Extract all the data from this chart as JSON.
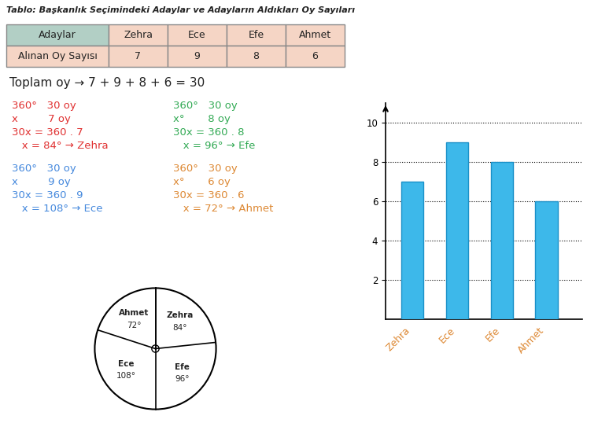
{
  "title": "Tablo: Başkanlık Seçimindeki Adaylar ve Adayların Aldıkları Oy Sayıları",
  "candidates": [
    "Zehra",
    "Ece",
    "Efe",
    "Ahmet"
  ],
  "votes": [
    7,
    9,
    8,
    6
  ],
  "total": 30,
  "angles": [
    84,
    108,
    96,
    72
  ],
  "bar_color": "#3db8ea",
  "table_header_bg": "#b2cfc5",
  "table_row_bg": "#f5d5c5",
  "table_border": "#888888",
  "text_red": "#e03030",
  "text_blue": "#4488dd",
  "text_green": "#33aa55",
  "text_orange": "#dd8833",
  "text_dark": "#222222",
  "bg_color": "#ffffff",
  "toplam_text": "Toplam oy → 7 + 9 + 8 + 6 = 30",
  "zehra_lines": [
    "360°   30 oy",
    "x         7 oy",
    "30x = 360 . 7",
    "   x = 84° → Zehra"
  ],
  "ece_lines": [
    "360°   30 oy",
    "x         9 oy",
    "30x = 360 . 9",
    "   x = 108° → Ece"
  ],
  "efe_lines": [
    "360°   30 oy",
    "x°       8 oy",
    "30x = 360 . 8",
    "   x = 96° → Efe"
  ],
  "ahmet_lines": [
    "360°   30 oy",
    "x°       6 oy",
    "30x = 360 . 6",
    "   x = 72° → Ahmet"
  ],
  "pie_order": [
    "Zehra",
    "Efe",
    "Ece",
    "Ahmet"
  ],
  "pie_angles_ordered": [
    84,
    96,
    108,
    72
  ]
}
